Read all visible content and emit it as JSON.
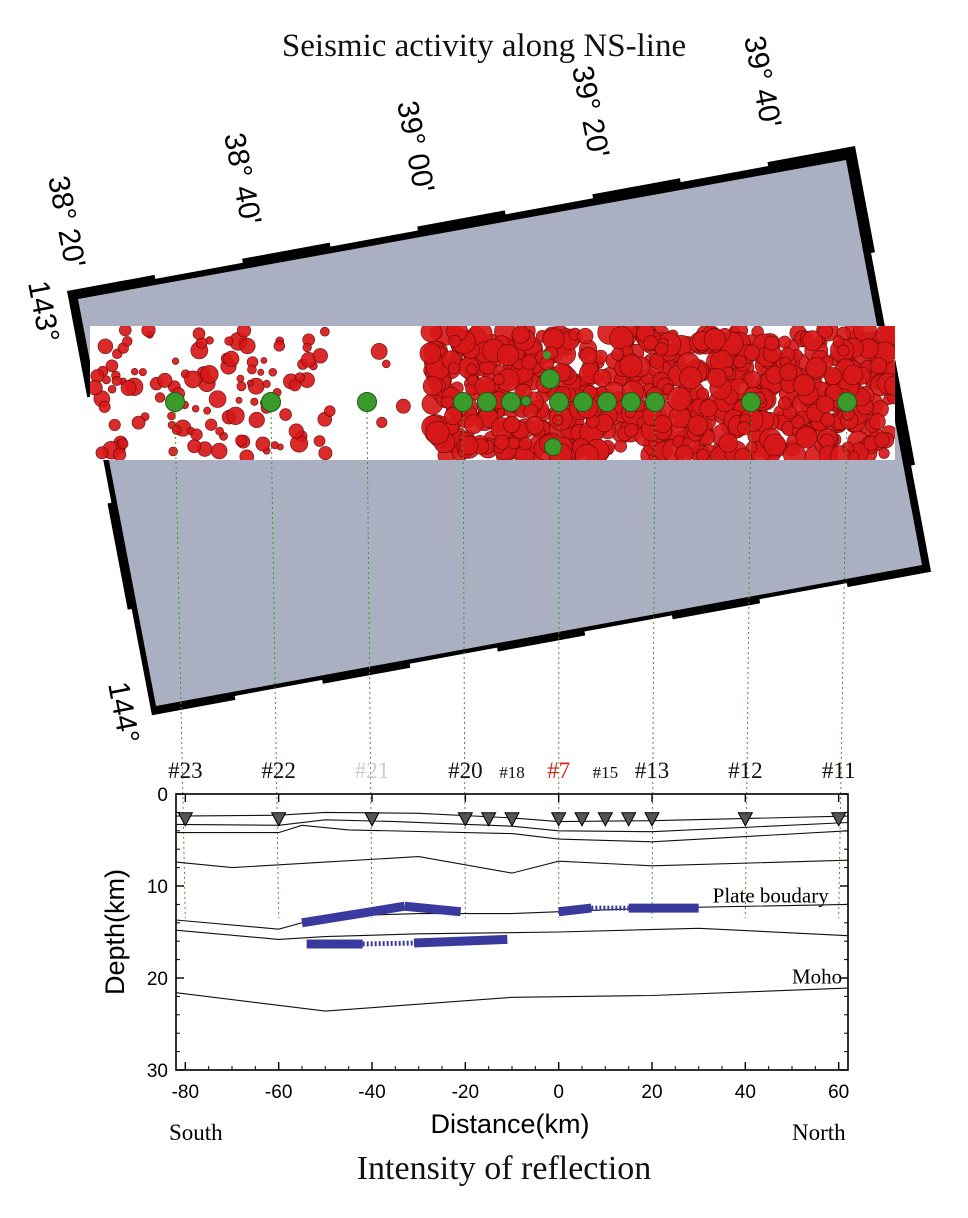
{
  "title": "Seismic activity along NS-line",
  "caption": "Intensity of reflection",
  "map": {
    "latitude_labels": [
      "38° 20'",
      "38° 40'",
      "39° 00'",
      "39° 20'",
      "39° 40'"
    ],
    "longitude_labels": [
      "143°",
      "144°"
    ]
  },
  "colors": {
    "earthquake": "#d81818",
    "station": "#3a9a2a",
    "interface": "#3a3a9e",
    "map_band": "#aab0c2",
    "guide": "#3a9a2a"
  },
  "stations": [
    {
      "label": "#23",
      "x": -80,
      "color": "#111111"
    },
    {
      "label": "#22",
      "x": -60,
      "color": "#111111"
    },
    {
      "label": "#21",
      "x": -40,
      "color": "#cccccc"
    },
    {
      "label": "#20",
      "x": -20,
      "color": "#111111"
    },
    {
      "label": "#18",
      "x": -10,
      "color": "#111111"
    },
    {
      "label": "#7",
      "x": 0,
      "color": "#d42020"
    },
    {
      "label": "#15",
      "x": 10,
      "color": "#111111"
    },
    {
      "label": "#13",
      "x": 20,
      "color": "#111111"
    },
    {
      "label": "#12",
      "x": 40,
      "color": "#111111"
    },
    {
      "label": "#11",
      "x": 60,
      "color": "#111111"
    }
  ],
  "chart_data": {
    "type": "line",
    "xlabel": "Distance(km)",
    "ylabel": "Depth(km)",
    "xlim": [
      -82,
      62
    ],
    "ylim": [
      0,
      30
    ],
    "x_ticks": [
      -80,
      -60,
      -40,
      -20,
      0,
      20,
      40,
      60
    ],
    "y_ticks": [
      0,
      10,
      20,
      30
    ],
    "end_labels": {
      "left": "South",
      "right": "North"
    },
    "annotations": [
      {
        "text": "Plate boudary",
        "x": 33,
        "y": 11.8
      },
      {
        "text": "Moho",
        "x": 50,
        "y": 20.6
      }
    ],
    "station_triangles_x": [
      -80,
      -60,
      -40,
      -20,
      -15,
      -10,
      0,
      5,
      10,
      15,
      20,
      40,
      60
    ],
    "layers": [
      [
        [
          -82,
          2.4
        ],
        [
          -60,
          2.3
        ],
        [
          -50,
          2.0
        ],
        [
          -30,
          2.1
        ],
        [
          -10,
          2.6
        ],
        [
          0,
          3.0
        ],
        [
          20,
          2.9
        ],
        [
          62,
          2.4
        ]
      ],
      [
        [
          -82,
          3.3
        ],
        [
          -60,
          3.4
        ],
        [
          -50,
          2.8
        ],
        [
          -35,
          3.0
        ],
        [
          -10,
          3.5
        ],
        [
          0,
          4.0
        ],
        [
          20,
          4.1
        ],
        [
          62,
          3.1
        ]
      ],
      [
        [
          -82,
          4.2
        ],
        [
          -60,
          4.2
        ],
        [
          -55,
          3.4
        ],
        [
          -45,
          3.9
        ],
        [
          -10,
          4.3
        ],
        [
          0,
          4.9
        ],
        [
          20,
          5.2
        ],
        [
          62,
          4.0
        ]
      ],
      [
        [
          -82,
          7.4
        ],
        [
          -70,
          8.0
        ],
        [
          -50,
          7.4
        ],
        [
          -30,
          6.8
        ],
        [
          -10,
          8.6
        ],
        [
          0,
          7.3
        ],
        [
          20,
          7.8
        ],
        [
          62,
          7.2
        ]
      ],
      [
        [
          -82,
          13.7
        ],
        [
          -60,
          14.7
        ],
        [
          -50,
          13.3
        ],
        [
          -30,
          13.0
        ],
        [
          -10,
          13.0
        ],
        [
          20,
          12.4
        ],
        [
          62,
          12.0
        ]
      ],
      [
        [
          -82,
          14.8
        ],
        [
          -60,
          15.8
        ],
        [
          -50,
          15.5
        ],
        [
          -30,
          15.2
        ],
        [
          0,
          15.0
        ],
        [
          30,
          14.6
        ],
        [
          62,
          15.4
        ]
      ],
      [
        [
          -82,
          21.6
        ],
        [
          -50,
          23.6
        ],
        [
          -10,
          22.1
        ],
        [
          20,
          21.9
        ],
        [
          62,
          21.1
        ]
      ]
    ],
    "reflectors_solid": [
      [
        [
          -55,
          14.0
        ],
        [
          -33,
          12.2
        ]
      ],
      [
        [
          -33,
          12.2
        ],
        [
          -21,
          12.8
        ]
      ],
      [
        [
          -54,
          16.3
        ],
        [
          -42,
          16.3
        ]
      ],
      [
        [
          -31,
          16.2
        ],
        [
          -11,
          15.8
        ]
      ],
      [
        [
          0,
          12.8
        ],
        [
          7,
          12.4
        ]
      ],
      [
        [
          15,
          12.4
        ],
        [
          30,
          12.4
        ]
      ]
    ],
    "reflectors_dashed": [
      [
        [
          -42,
          16.3
        ],
        [
          -31,
          16.2
        ]
      ],
      [
        [
          7,
          12.4
        ],
        [
          15,
          12.4
        ]
      ]
    ]
  }
}
